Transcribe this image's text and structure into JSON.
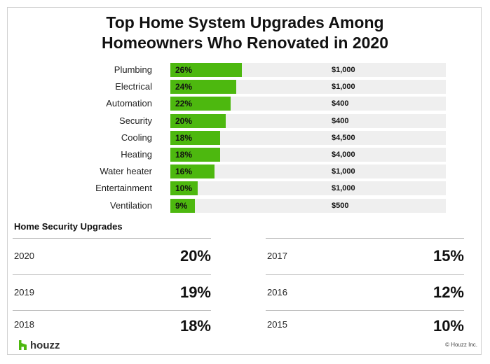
{
  "title_line1": "Top Home System Upgrades Among",
  "title_line2": "Homeowners Who Renovated in 2020",
  "bar_color": "#4db80f",
  "track_color": "#efefef",
  "chart_data": {
    "type": "bar",
    "orientation": "horizontal",
    "title": "Top Home System Upgrades Among Homeowners Who Renovated in 2020",
    "categories": [
      "Plumbing",
      "Electrical",
      "Automation",
      "Security",
      "Cooling",
      "Heating",
      "Water heater",
      "Entertainment",
      "Ventilation"
    ],
    "values": [
      26,
      24,
      22,
      20,
      18,
      18,
      16,
      10,
      9
    ],
    "value_labels": [
      "26%",
      "24%",
      "22%",
      "20%",
      "18%",
      "18%",
      "16%",
      "10%",
      "9%"
    ],
    "costs": [
      "$1,000",
      "$1,000",
      "$400",
      "$400",
      "$4,500",
      "$4,000",
      "$1,000",
      "$1,000",
      "$500"
    ],
    "xlim": [
      0,
      100
    ],
    "grid": false
  },
  "security": {
    "title": "Home Security Upgrades",
    "left": [
      {
        "year": "2020",
        "value": "20%"
      },
      {
        "year": "2019",
        "value": "19%"
      },
      {
        "year": "2018",
        "value": "18%"
      }
    ],
    "right": [
      {
        "year": "2017",
        "value": "15%"
      },
      {
        "year": "2016",
        "value": "12%"
      },
      {
        "year": "2015",
        "value": "10%"
      }
    ]
  },
  "footer": {
    "brand": "houzz",
    "brand_icon": "houzz-logo-icon",
    "copyright": "© Houzz Inc."
  }
}
